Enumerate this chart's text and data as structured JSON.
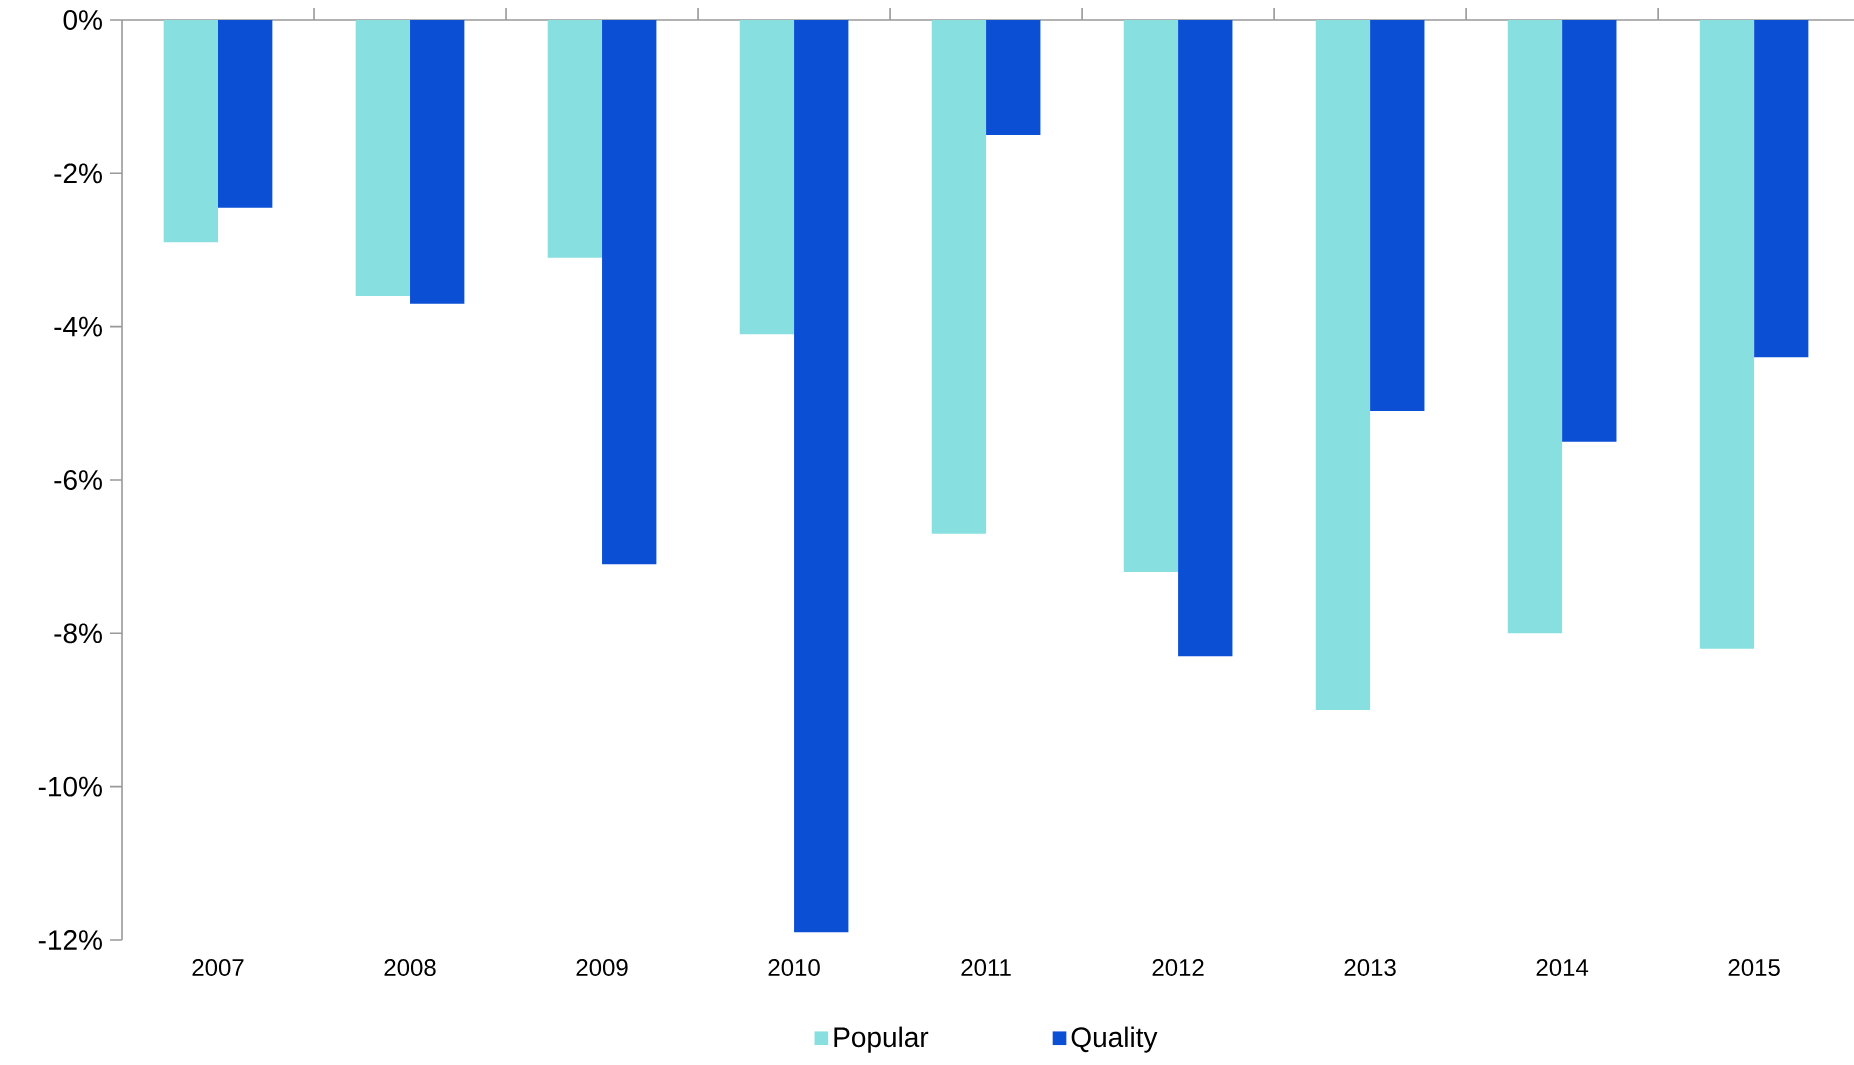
{
  "chart_data": {
    "type": "bar",
    "categories": [
      "2007",
      "2008",
      "2009",
      "2010",
      "2011",
      "2012",
      "2013",
      "2014",
      "2015"
    ],
    "series": [
      {
        "name": "Popular",
        "color": "#88dfe0",
        "values": [
          -2.9,
          -3.6,
          -3.1,
          -4.1,
          -6.7,
          -7.2,
          -9.0,
          -8.0,
          -8.2
        ]
      },
      {
        "name": "Quality",
        "color": "#0b4fd4",
        "values": [
          -2.45,
          -3.7,
          -7.1,
          -11.9,
          -1.5,
          -8.3,
          -5.1,
          -5.5,
          -4.4
        ]
      }
    ],
    "ylim": [
      -12,
      0
    ],
    "yticks": [
      {
        "value": -12,
        "label": "-12%"
      },
      {
        "value": -10,
        "label": "-10%"
      },
      {
        "value": -8,
        "label": "-8%"
      },
      {
        "value": -6,
        "label": "-6%"
      },
      {
        "value": -4,
        "label": "-4%"
      },
      {
        "value": -2,
        "label": "-2%"
      },
      {
        "value": 0,
        "label": "0%"
      }
    ],
    "grid": false,
    "legend": "bottom"
  }
}
